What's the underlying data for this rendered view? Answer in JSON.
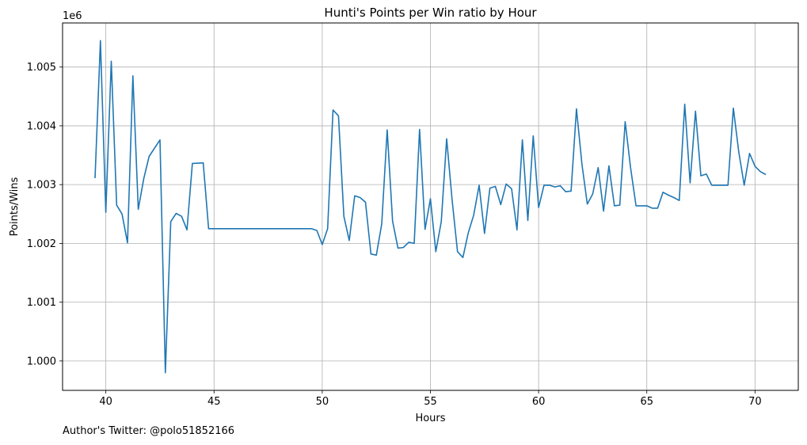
{
  "chart_data": {
    "type": "line",
    "title": "Hunti's Points per Win ratio by Hour",
    "xlabel": "Hours",
    "ylabel": "Points/Wins",
    "y_offset_label": "1e6",
    "xlim": [
      38,
      72
    ],
    "ylim": [
      999500,
      1005750
    ],
    "grid": true,
    "x_ticks": [
      40,
      45,
      50,
      55,
      60,
      65,
      70
    ],
    "y_ticks": [
      1000000,
      1001000,
      1002000,
      1003000,
      1004000,
      1005000
    ],
    "y_tick_labels": [
      "1.000",
      "1.001",
      "1.002",
      "1.003",
      "1.004",
      "1.005"
    ],
    "x_tick_labels": [
      "40",
      "45",
      "50",
      "55",
      "60",
      "65",
      "70"
    ],
    "line_color": "#1f77b4",
    "series": [
      {
        "x": [
          39.5,
          39.75,
          40.0,
          40.25,
          40.5,
          40.75,
          41.0,
          41.25,
          41.5,
          41.75,
          42.0,
          42.5,
          42.75,
          43.0,
          43.25,
          43.5,
          43.75,
          44.0,
          44.5,
          44.75,
          49.5,
          49.75,
          50.0,
          50.25,
          50.5,
          50.75,
          51.0,
          51.25,
          51.5,
          51.75,
          52.0,
          52.25,
          52.5,
          52.75,
          53.0,
          53.25,
          53.5,
          53.75,
          54.0,
          54.25,
          54.5,
          54.75,
          55.0,
          55.25,
          55.5,
          55.75,
          56.0,
          56.25,
          56.5,
          56.75,
          57.0,
          57.25,
          57.5,
          57.75,
          58.0,
          58.25,
          58.5,
          58.75,
          59.0,
          59.25,
          59.5,
          59.75,
          60.0,
          60.25,
          60.5,
          60.75,
          61.0,
          61.25,
          61.5,
          61.75,
          62.0,
          62.25,
          62.5,
          62.75,
          63.0,
          63.25,
          63.5,
          63.75,
          64.0,
          64.25,
          64.5,
          64.75,
          65.0,
          65.25,
          65.5,
          65.75,
          66.0,
          66.25,
          66.5,
          66.75,
          67.0,
          67.25,
          67.5,
          67.75,
          68.0,
          68.25,
          68.5,
          68.75,
          69.0,
          69.25,
          69.5,
          69.75,
          70.0,
          70.25,
          70.5
        ],
        "y": [
          1003110,
          1005450,
          1002530,
          1005100,
          1002650,
          1002500,
          1002010,
          1004850,
          1002580,
          1003100,
          1003480,
          1003760,
          999800,
          1002370,
          1002510,
          1002460,
          1002230,
          1003360,
          1003370,
          1002250,
          1002250,
          1002220,
          1001980,
          1002250,
          1004270,
          1004170,
          1002460,
          1002050,
          1002810,
          1002780,
          1002700,
          1001820,
          1001800,
          1002330,
          1003930,
          1002380,
          1001920,
          1001930,
          1002020,
          1002000,
          1003940,
          1002240,
          1002760,
          1001860,
          1002370,
          1003780,
          1002750,
          1001860,
          1001760,
          1002180,
          1002480,
          1002990,
          1002170,
          1002940,
          1002970,
          1002660,
          1003010,
          1002930,
          1002230,
          1003760,
          1002390,
          1003830,
          1002610,
          1002990,
          1002990,
          1002960,
          1002980,
          1002880,
          1002890,
          1004290,
          1003350,
          1002670,
          1002840,
          1003290,
          1002550,
          1003320,
          1002640,
          1002650,
          1004070,
          1003290,
          1002640,
          1002640,
          1002640,
          1002600,
          1002600,
          1002870,
          1002820,
          1002780,
          1002730,
          1004370,
          1003030,
          1004250,
          1003150,
          1003180,
          1002990,
          1002990,
          1002990,
          1002990,
          1004300,
          1003550,
          1002990,
          1003530,
          1003310,
          1003220,
          1003170
        ]
      }
    ]
  },
  "footer": {
    "author_text": "Author's Twitter: @polo51852166"
  }
}
